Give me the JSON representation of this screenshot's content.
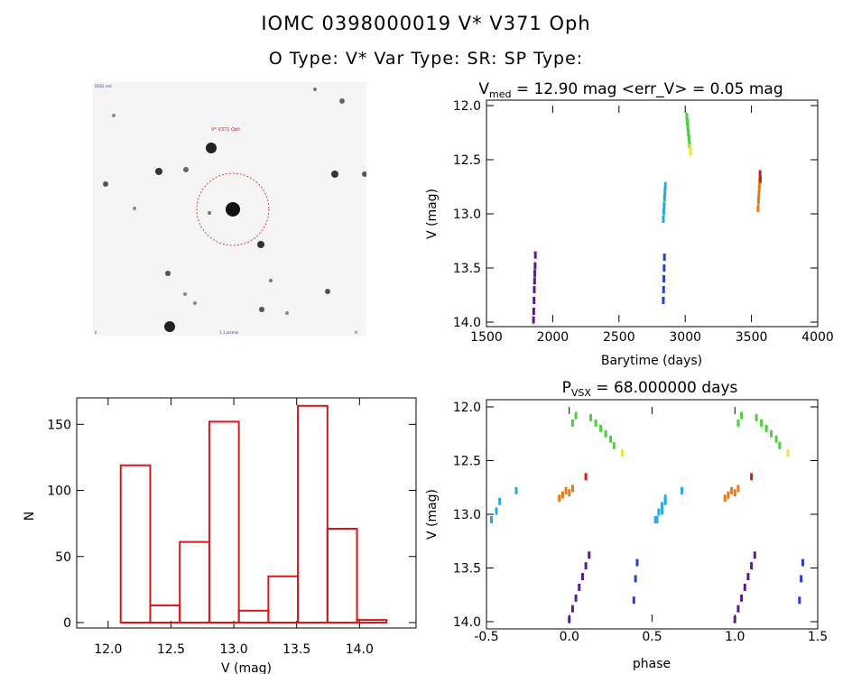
{
  "header": {
    "line1": "IOMC 0398000019    V* V371 Oph",
    "line2": "O Type: V*   Var Type: SR:   SP Type:"
  },
  "finder": {
    "target_label": "V* V371 Oph",
    "corner_tl": "DSS2 red",
    "corner_bl": "E",
    "corner_bc": "1.1 arcmin",
    "corner_br": "N"
  },
  "chart_data": [
    {
      "type": "scatter",
      "id": "lightcurve",
      "title_prefix": "V",
      "title_sub": "med",
      "title_rest": " = 12.90 mag <err_V> = 0.05 mag",
      "xlabel": "Barytime (days)",
      "ylabel": "V (mag)",
      "xlim": [
        1500,
        4000
      ],
      "ylim": [
        14.0,
        12.0
      ],
      "xticks": [
        1500,
        2000,
        2500,
        3000,
        3500,
        4000
      ],
      "yticks": [
        12.0,
        12.5,
        13.0,
        13.5,
        14.0
      ],
      "series": [
        {
          "color": "#5a1a8a",
          "x": [
            1855,
            1857,
            1859,
            1861,
            1863,
            1865,
            1867,
            1869
          ],
          "y": [
            13.98,
            13.9,
            13.8,
            13.7,
            13.62,
            13.55,
            13.48,
            13.38
          ]
        },
        {
          "color": "#2a3fd0",
          "x": [
            2835,
            2837,
            2839,
            2841,
            2843
          ],
          "y": [
            13.8,
            13.7,
            13.6,
            13.5,
            13.4
          ]
        },
        {
          "color": "#2aa8e0",
          "x": [
            2835,
            2838,
            2841,
            2844,
            2847,
            2850
          ],
          "y": [
            13.05,
            12.98,
            12.92,
            12.85,
            12.8,
            12.74
          ]
        },
        {
          "color": "#4ad03a",
          "x": [
            3012,
            3016,
            3020,
            3024,
            3028,
            3032
          ],
          "y": [
            12.1,
            12.15,
            12.2,
            12.25,
            12.3,
            12.36
          ]
        },
        {
          "color": "#e8e83a",
          "x": [
            3038,
            3040
          ],
          "y": [
            12.39,
            12.43
          ]
        },
        {
          "color": "#e8781a",
          "x": [
            3550,
            3553,
            3556,
            3559,
            3562
          ],
          "y": [
            12.95,
            12.88,
            12.82,
            12.76,
            12.7
          ]
        },
        {
          "color": "#d81818",
          "x": [
            3565,
            3567
          ],
          "y": [
            12.63,
            12.68
          ]
        }
      ]
    },
    {
      "type": "bar",
      "id": "histogram",
      "xlabel": "V (mag)",
      "ylabel": "N",
      "xlim": [
        11.75,
        14.45
      ],
      "ylim": [
        0,
        170
      ],
      "xticks": [
        12.0,
        12.5,
        13.0,
        13.5,
        14.0
      ],
      "yticks": [
        0,
        50,
        100,
        150
      ],
      "bins": [
        {
          "x0": 12.1,
          "x1": 12.335,
          "value": 119
        },
        {
          "x0": 12.335,
          "x1": 12.57,
          "value": 13
        },
        {
          "x0": 12.57,
          "x1": 12.805,
          "value": 61
        },
        {
          "x0": 12.805,
          "x1": 13.04,
          "value": 152
        },
        {
          "x0": 13.04,
          "x1": 13.275,
          "value": 9
        },
        {
          "x0": 13.275,
          "x1": 13.51,
          "value": 35
        },
        {
          "x0": 13.51,
          "x1": 13.745,
          "value": 164
        },
        {
          "x0": 13.745,
          "x1": 13.98,
          "value": 71
        },
        {
          "x0": 13.98,
          "x1": 14.215,
          "value": 2
        }
      ],
      "color": "#d81818"
    },
    {
      "type": "scatter",
      "id": "phased",
      "title_prefix": "P",
      "title_sub": "VSX",
      "title_rest": " = 68.000000 days",
      "xlabel": "phase",
      "ylabel": "V (mag)",
      "xlim": [
        -0.5,
        1.5
      ],
      "ylim": [
        14.0,
        12.0
      ],
      "xticks": [
        -0.5,
        0.0,
        0.5,
        1.0,
        1.5
      ],
      "yticks": [
        12.0,
        12.5,
        13.0,
        13.5,
        14.0
      ],
      "series": [
        {
          "color": "#5a1a8a",
          "x": [
            0.0,
            0.02,
            0.04,
            0.06,
            0.08,
            0.1,
            0.12
          ],
          "y": [
            13.98,
            13.88,
            13.78,
            13.68,
            13.58,
            13.48,
            13.38
          ]
        },
        {
          "color": "#2a3fd0",
          "x": [
            0.39,
            0.4,
            0.41
          ],
          "y": [
            13.8,
            13.6,
            13.45
          ]
        },
        {
          "color": "#2aa8e0",
          "x": [
            0.52,
            0.54,
            0.56,
            0.58,
            0.68,
            -0.47,
            -0.44,
            -0.42,
            -0.32
          ],
          "y": [
            13.05,
            12.98,
            12.92,
            12.85,
            12.78,
            13.05,
            12.97,
            12.88,
            12.78
          ]
        },
        {
          "color": "#4ad03a",
          "x": [
            0.02,
            0.04,
            0.13,
            0.16,
            0.19,
            0.22,
            0.25,
            0.27
          ],
          "y": [
            12.15,
            12.08,
            12.1,
            12.15,
            12.2,
            12.25,
            12.3,
            12.36
          ]
        },
        {
          "color": "#e8e83a",
          "x": [
            0.32
          ],
          "y": [
            12.43
          ]
        },
        {
          "color": "#e8781a",
          "x": [
            -0.06,
            -0.04,
            -0.02,
            0.0,
            0.02
          ],
          "y": [
            12.85,
            12.82,
            12.78,
            12.8,
            12.76
          ]
        },
        {
          "color": "#d81818",
          "x": [
            0.1
          ],
          "y": [
            12.65
          ]
        }
      ],
      "mirror_offset": 1.0
    }
  ]
}
